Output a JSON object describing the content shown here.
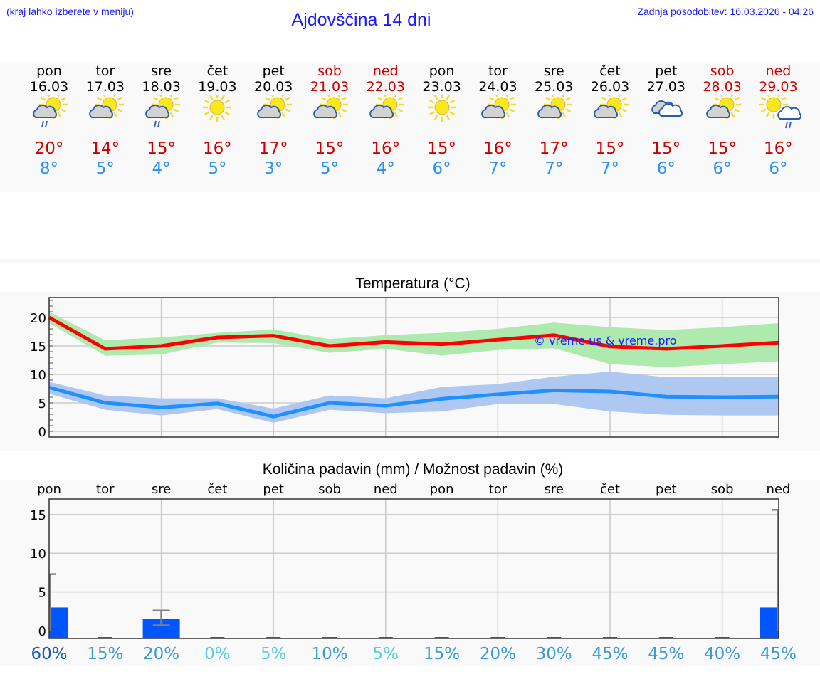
{
  "header": {
    "hint": "(kraj lahko izberete v meniju)",
    "title": "Ajdovščina 14 dni",
    "updated": "Zadnja posodobitev: 16.03.2026 - 04:26"
  },
  "days": [
    {
      "name": "pon",
      "date": "16.03",
      "weekend": false,
      "icon": "partly-cloudy-rain",
      "tmax": "20°",
      "tmin": "8°"
    },
    {
      "name": "tor",
      "date": "17.03",
      "weekend": false,
      "icon": "partly-cloudy",
      "tmax": "14°",
      "tmin": "5°"
    },
    {
      "name": "sre",
      "date": "18.03",
      "weekend": false,
      "icon": "partly-cloudy-rain",
      "tmax": "15°",
      "tmin": "4°"
    },
    {
      "name": "čet",
      "date": "19.03",
      "weekend": false,
      "icon": "sunny",
      "tmax": "16°",
      "tmin": "5°"
    },
    {
      "name": "pet",
      "date": "20.03",
      "weekend": false,
      "icon": "partly-cloudy",
      "tmax": "17°",
      "tmin": "3°"
    },
    {
      "name": "sob",
      "date": "21.03",
      "weekend": true,
      "icon": "partly-cloudy",
      "tmax": "15°",
      "tmin": "5°"
    },
    {
      "name": "ned",
      "date": "22.03",
      "weekend": true,
      "icon": "partly-cloudy",
      "tmax": "16°",
      "tmin": "4°"
    },
    {
      "name": "pon",
      "date": "23.03",
      "weekend": false,
      "icon": "sunny",
      "tmax": "15°",
      "tmin": "6°"
    },
    {
      "name": "tor",
      "date": "24.03",
      "weekend": false,
      "icon": "partly-cloudy",
      "tmax": "16°",
      "tmin": "7°"
    },
    {
      "name": "sre",
      "date": "25.03",
      "weekend": false,
      "icon": "partly-cloudy",
      "tmax": "17°",
      "tmin": "7°"
    },
    {
      "name": "čet",
      "date": "26.03",
      "weekend": false,
      "icon": "partly-cloudy",
      "tmax": "15°",
      "tmin": "7°"
    },
    {
      "name": "pet",
      "date": "27.03",
      "weekend": false,
      "icon": "cloudy",
      "tmax": "15°",
      "tmin": "6°"
    },
    {
      "name": "sob",
      "date": "28.03",
      "weekend": true,
      "icon": "partly-cloudy",
      "tmax": "15°",
      "tmin": "6°"
    },
    {
      "name": "ned",
      "date": "29.03",
      "weekend": true,
      "icon": "sun-cloud-rain",
      "tmax": "16°",
      "tmin": "6°"
    }
  ],
  "colors": {
    "tmax_line": "#ff0000",
    "tmax_band": "#aeeaae",
    "tmin_line": "#1e90ff",
    "tmin_band": "#aec8f2",
    "precip_bar": "#0055ff",
    "weekend_text": "#cc0000",
    "header_text": "#1a1aff"
  },
  "chart_data": [
    {
      "type": "line",
      "title": "Temperatura (°C)",
      "xlabel": "",
      "ylabel": "",
      "ylim": [
        -1,
        23.5
      ],
      "yticks": [
        0,
        5,
        10,
        15,
        20
      ],
      "grid": true,
      "annotation": "© vreme.us & vreme.pro",
      "x": [
        "16.03",
        "17.03",
        "18.03",
        "19.03",
        "20.03",
        "21.03",
        "22.03",
        "23.03",
        "24.03",
        "25.03",
        "26.03",
        "27.03",
        "28.03",
        "29.03"
      ],
      "series": [
        {
          "name": "Tmax",
          "values": [
            20,
            14.5,
            15,
            16.5,
            16.8,
            15,
            15.7,
            15.3,
            16.1,
            16.9,
            14.9,
            14.5,
            15,
            15.6
          ],
          "band_high": [
            21,
            16,
            16.5,
            17.3,
            17.9,
            16.2,
            16.9,
            17.3,
            18,
            19.1,
            18.3,
            17.8,
            18.3,
            19
          ],
          "band_low": [
            19,
            13.3,
            13.5,
            15.6,
            15.5,
            13.8,
            14.5,
            13.3,
            14.3,
            14.6,
            11.8,
            11.3,
            11.8,
            12.3
          ]
        },
        {
          "name": "Tmin",
          "values": [
            7.7,
            5,
            4.2,
            4.9,
            2.6,
            5,
            4.5,
            5.7,
            6.5,
            7.2,
            7.0,
            6.1,
            6.0,
            6.1
          ],
          "band_high": [
            8.7,
            6.3,
            5.8,
            5.8,
            4,
            6.3,
            5.8,
            7.8,
            8.3,
            9.6,
            10.5,
            9.5,
            9.5,
            9.5
          ],
          "band_low": [
            6.6,
            3.8,
            2.8,
            3.9,
            1.5,
            3.8,
            3.2,
            3.5,
            4.8,
            4.8,
            3.5,
            2.9,
            2.8,
            2.8
          ]
        }
      ]
    },
    {
      "type": "bar",
      "title": "Količina padavin (mm) / Možnost padavin (%)",
      "categories": [
        "pon",
        "tor",
        "sre",
        "čet",
        "pet",
        "sob",
        "ned",
        "pon",
        "tor",
        "sre",
        "čet",
        "pet",
        "sob",
        "ned"
      ],
      "ylim": [
        -1,
        17
      ],
      "yticks": [
        0,
        5,
        10,
        15
      ],
      "grid": true,
      "series": [
        {
          "name": "Količina padavin (mm)",
          "values": [
            3.0,
            0,
            1.5,
            0,
            0,
            0,
            0,
            0,
            0,
            0,
            0,
            0,
            0,
            3.0
          ],
          "error_high": [
            7.3,
            0,
            2.6,
            0,
            0,
            0,
            0,
            0,
            0,
            0,
            0,
            0,
            0,
            15.6
          ],
          "error_low": [
            0,
            0,
            0.7,
            0,
            0,
            0,
            0,
            0,
            0,
            0,
            0,
            0,
            0,
            0
          ]
        },
        {
          "name": "Možnost padavin (%)",
          "values": [
            60,
            15,
            20,
            0,
            5,
            10,
            5,
            15,
            20,
            30,
            45,
            45,
            40,
            45
          ]
        }
      ],
      "probability_labels": [
        "60%",
        "15%",
        "20%",
        "0%",
        "5%",
        "10%",
        "5%",
        "15%",
        "20%",
        "30%",
        "45%",
        "45%",
        "40%",
        "45%"
      ]
    }
  ]
}
